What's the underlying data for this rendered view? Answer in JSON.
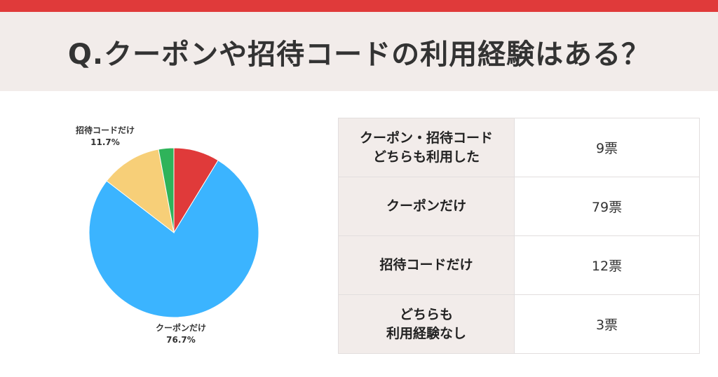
{
  "header": {
    "title": "Q.クーポンや招待コードの利用経験はある？",
    "accent_color": "#e03a3a",
    "band_color": "#f2ecea"
  },
  "chart_data": {
    "type": "pie",
    "categories": [
      "クーポン・招待コードどちらも利用した",
      "クーポンだけ",
      "招待コードだけ",
      "どちらも利用経験なし"
    ],
    "values": [
      9,
      79,
      12,
      3
    ],
    "colors": [
      "#e03a3a",
      "#3bb4ff",
      "#f7cf78",
      "#2fb35a"
    ],
    "labels": [
      {
        "name": "招待コードだけ",
        "percent": "11.7%"
      },
      {
        "name": "クーポンだけ",
        "percent": "76.7%"
      }
    ]
  },
  "table": {
    "rows": [
      {
        "label_lines": [
          "クーポン・招待コード",
          "どちらも利用した"
        ],
        "value": "9票"
      },
      {
        "label_lines": [
          "クーポンだけ"
        ],
        "value": "79票"
      },
      {
        "label_lines": [
          "招待コードだけ"
        ],
        "value": "12票"
      },
      {
        "label_lines": [
          "どちらも",
          "利用経験なし"
        ],
        "value": "3票"
      }
    ]
  }
}
